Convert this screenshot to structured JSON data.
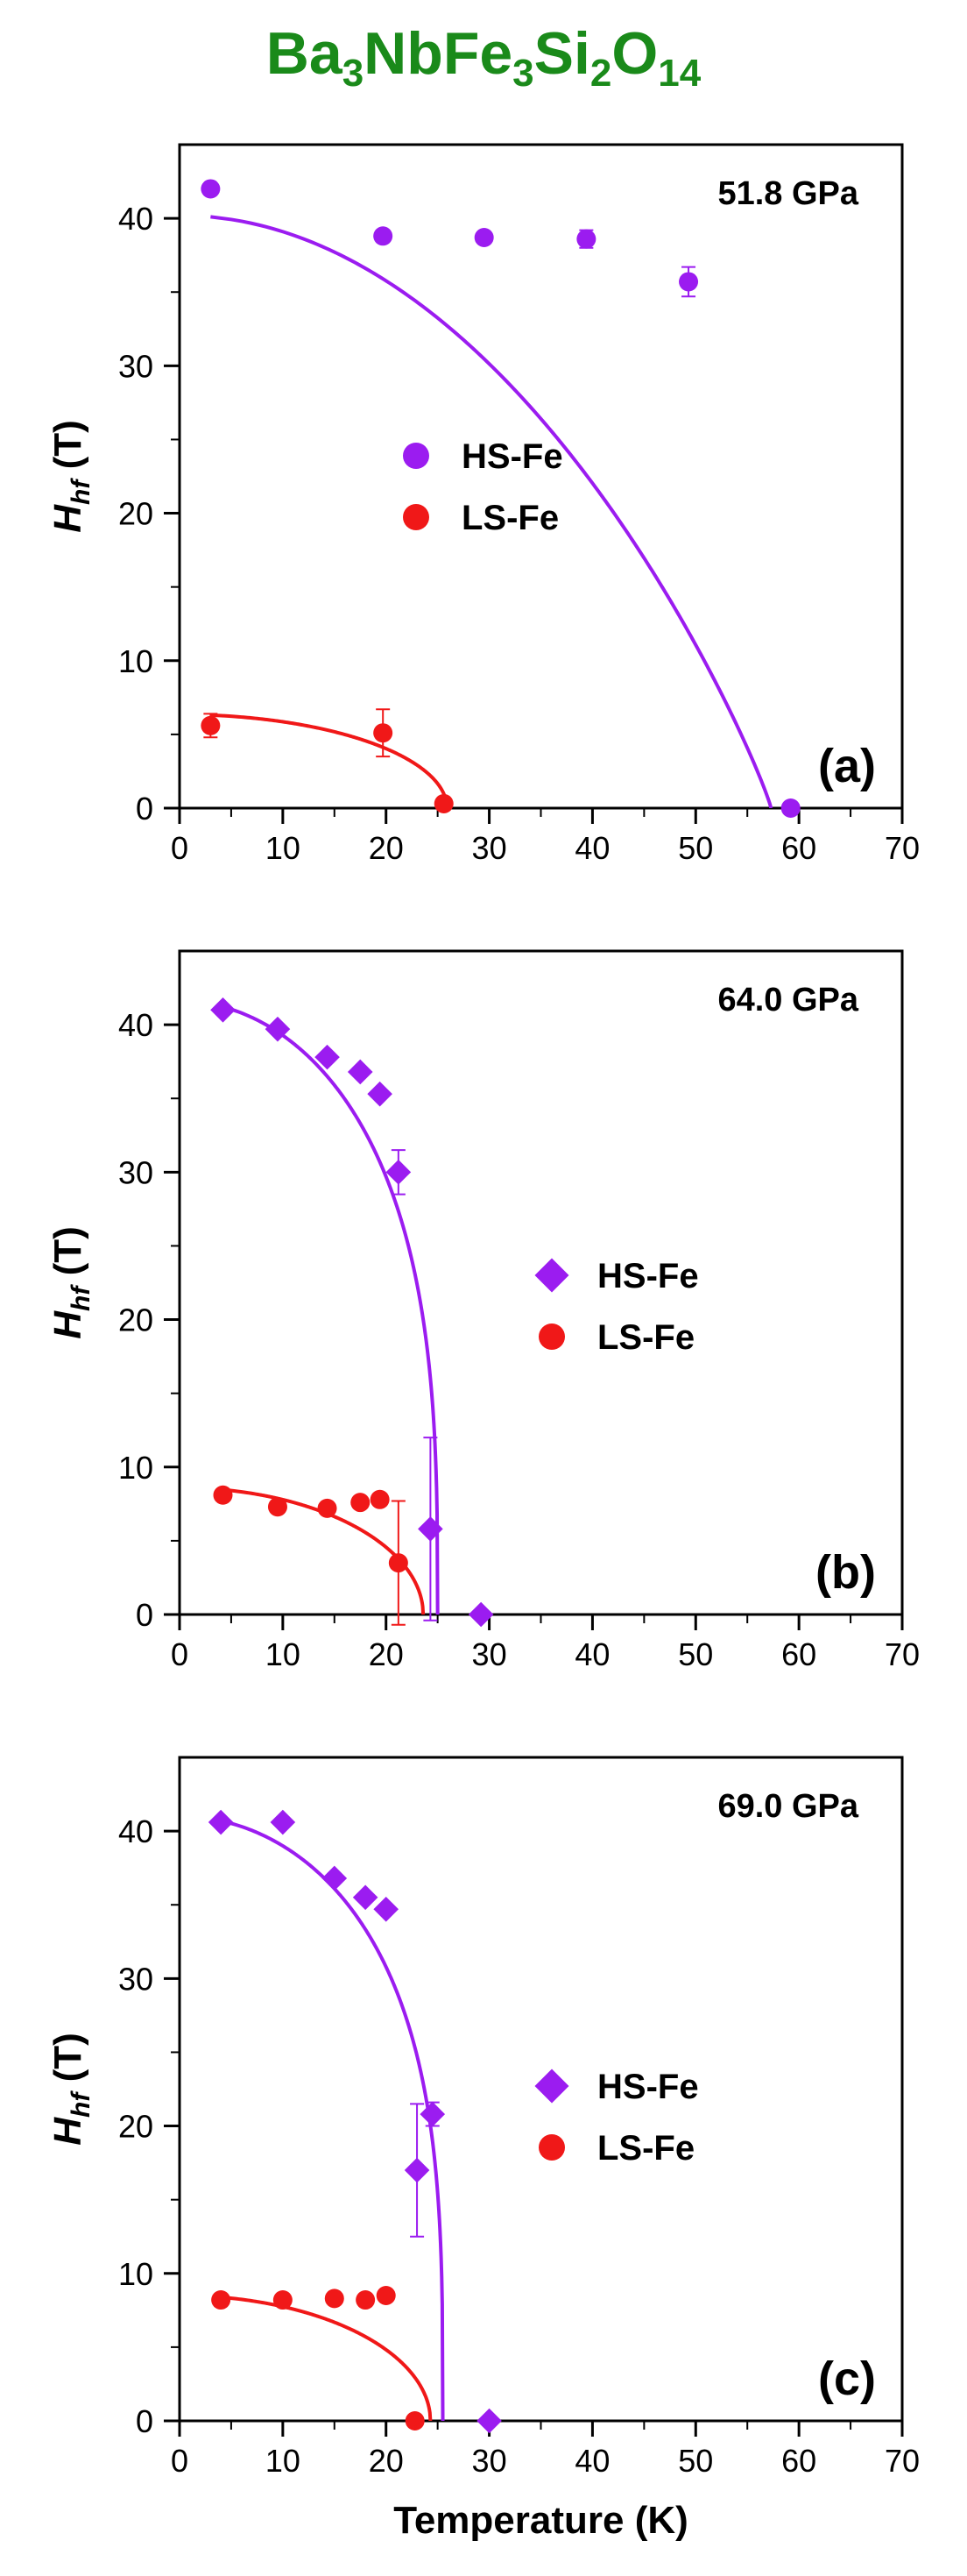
{
  "figure": {
    "title_parts": [
      "Ba",
      "3",
      "NbFe",
      "3",
      "Si",
      "2",
      "O",
      "14"
    ],
    "xlabel": "Temperature (K)",
    "colors": {
      "title": "#1a8a1a",
      "hs": "#9b1cf0",
      "ls": "#f01818",
      "axis": "#000000"
    }
  },
  "chart_data": [
    {
      "type": "scatter",
      "panel_label": "(a)",
      "annotation": "51.8 GPa",
      "xlabel": "",
      "ylabel_main": "H",
      "ylabel_sub": "hf",
      "ylabel_unit": " (T)",
      "xlim": [
        0,
        70
      ],
      "ylim": [
        0,
        45
      ],
      "xticks": [
        0,
        10,
        20,
        30,
        40,
        50,
        60,
        70
      ],
      "yticks": [
        0,
        10,
        20,
        30,
        40
      ],
      "legend_position": "center-left",
      "series": [
        {
          "name": "HS-Fe",
          "marker": "circle",
          "color": "#9b1cf0",
          "points": [
            {
              "x": 3,
              "y": 42.0,
              "err": 0
            },
            {
              "x": 19.7,
              "y": 38.8,
              "err": 0
            },
            {
              "x": 29.5,
              "y": 38.7,
              "err": 0
            },
            {
              "x": 39.4,
              "y": 38.6,
              "err": 0.6
            },
            {
              "x": 49.3,
              "y": 35.7,
              "err": 1.0
            },
            {
              "x": 59.2,
              "y": 0,
              "err": 0
            }
          ],
          "fit": {
            "h0": 40.2,
            "tc": 57.3,
            "p": 0.9,
            "t_start": 3
          }
        },
        {
          "name": "LS-Fe",
          "marker": "circle",
          "color": "#f01818",
          "points": [
            {
              "x": 3,
              "y": 5.6,
              "err": 0.8
            },
            {
              "x": 19.7,
              "y": 5.1,
              "err": 1.6
            },
            {
              "x": 25.6,
              "y": 0.3,
              "err": 0
            }
          ],
          "fit": {
            "h0": 6.35,
            "tc": 25.9,
            "p": 0.5,
            "t_start": 3
          }
        }
      ]
    },
    {
      "type": "scatter",
      "panel_label": "(b)",
      "annotation": "64.0 GPa",
      "xlabel": "",
      "ylabel_main": "H",
      "ylabel_sub": "hf",
      "ylabel_unit": " (T)",
      "xlim": [
        0,
        70
      ],
      "ylim": [
        0,
        45
      ],
      "xticks": [
        0,
        10,
        20,
        30,
        40,
        50,
        60,
        70
      ],
      "yticks": [
        0,
        10,
        20,
        30,
        40
      ],
      "legend_position": "center-right",
      "series": [
        {
          "name": "HS-Fe",
          "marker": "diamond",
          "color": "#9b1cf0",
          "points": [
            {
              "x": 4.2,
              "y": 41.0,
              "err": 0
            },
            {
              "x": 9.5,
              "y": 39.7,
              "err": 0
            },
            {
              "x": 14.3,
              "y": 37.8,
              "err": 0
            },
            {
              "x": 17.5,
              "y": 36.8,
              "err": 0
            },
            {
              "x": 19.4,
              "y": 35.3,
              "err": 0
            },
            {
              "x": 21.2,
              "y": 30.0,
              "err": 1.5
            },
            {
              "x": 24.3,
              "y": 5.8,
              "err": 6.2
            },
            {
              "x": 29.2,
              "y": 0,
              "err": 0
            }
          ],
          "fit": {
            "h0": 41.6,
            "tc": 25.0,
            "p": 0.33,
            "t_start": 4.2
          }
        },
        {
          "name": "LS-Fe",
          "marker": "circle",
          "color": "#f01818",
          "points": [
            {
              "x": 4.2,
              "y": 8.1,
              "err": 0
            },
            {
              "x": 9.5,
              "y": 7.3,
              "err": 0
            },
            {
              "x": 14.3,
              "y": 7.2,
              "err": 0
            },
            {
              "x": 17.5,
              "y": 7.6,
              "err": 0
            },
            {
              "x": 19.4,
              "y": 7.8,
              "err": 0
            },
            {
              "x": 21.2,
              "y": 3.5,
              "err": 4.2
            }
          ],
          "fit": {
            "h0": 8.6,
            "tc": 23.6,
            "p": 0.5,
            "t_start": 4.2
          }
        }
      ]
    },
    {
      "type": "scatter",
      "panel_label": "(c)",
      "annotation": "69.0 GPa",
      "xlabel": "Temperature (K)",
      "ylabel_main": "H",
      "ylabel_sub": "hf",
      "ylabel_unit": " (T)",
      "xlim": [
        0,
        70
      ],
      "ylim": [
        0,
        45
      ],
      "xticks": [
        0,
        10,
        20,
        30,
        40,
        50,
        60,
        70
      ],
      "yticks": [
        0,
        10,
        20,
        30,
        40
      ],
      "legend_position": "center-right",
      "series": [
        {
          "name": "HS-Fe",
          "marker": "diamond",
          "color": "#9b1cf0",
          "points": [
            {
              "x": 4.0,
              "y": 40.6,
              "err": 0
            },
            {
              "x": 10.0,
              "y": 40.6,
              "err": 0
            },
            {
              "x": 15.0,
              "y": 36.8,
              "err": 0
            },
            {
              "x": 18.0,
              "y": 35.5,
              "err": 0
            },
            {
              "x": 20.0,
              "y": 34.7,
              "err": 0
            },
            {
              "x": 23.0,
              "y": 17.0,
              "err": 4.5
            },
            {
              "x": 24.5,
              "y": 20.8,
              "err": 0.8
            },
            {
              "x": 30.0,
              "y": 0,
              "err": 0
            }
          ],
          "fit": {
            "h0": 41.0,
            "tc": 25.5,
            "p": 0.3,
            "t_start": 4.0
          }
        },
        {
          "name": "LS-Fe",
          "marker": "circle",
          "color": "#f01818",
          "points": [
            {
              "x": 4.0,
              "y": 8.2,
              "err": 0
            },
            {
              "x": 10.0,
              "y": 8.2,
              "err": 0
            },
            {
              "x": 15.0,
              "y": 8.3,
              "err": 0
            },
            {
              "x": 18.0,
              "y": 8.2,
              "err": 0
            },
            {
              "x": 20.0,
              "y": 8.5,
              "err": 0
            },
            {
              "x": 22.8,
              "y": 0,
              "err": 0
            }
          ],
          "fit": {
            "h0": 8.5,
            "tc": 24.3,
            "p": 0.5,
            "t_start": 4.0
          }
        }
      ]
    }
  ]
}
